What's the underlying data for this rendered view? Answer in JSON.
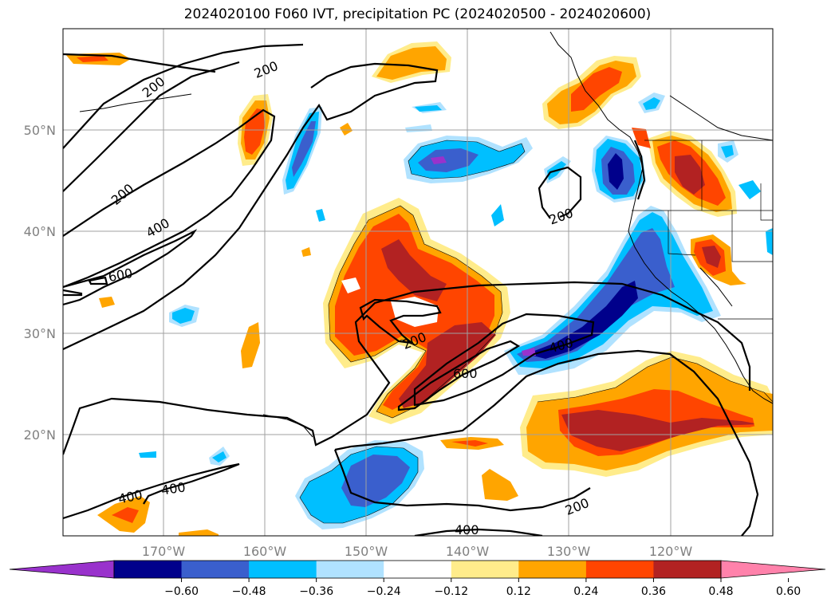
{
  "title": "2024020100 F060 IVT, precipitation PC (2024020500 - 2024020600)",
  "map": {
    "lat_labels": [
      "50°N",
      "40°N",
      "30°N",
      "20°N"
    ],
    "lon_labels": [
      "170°W",
      "160°W",
      "150°W",
      "140°W",
      "130°W",
      "120°W"
    ],
    "contour_labels": [
      "200",
      "200",
      "200",
      "400",
      "600",
      "200",
      "400",
      "200",
      "600",
      "400",
      "400",
      "200",
      "400",
      "400"
    ]
  },
  "colorbar": {
    "colors": [
      "#9932cc",
      "#00008b",
      "#3a5fcd",
      "#00bfff",
      "#b0e2ff",
      "#ffffff",
      "#ffec8b",
      "#ffa500",
      "#ff4500",
      "#b22222",
      "#ff82ab"
    ],
    "tick_labels": [
      "−0.60",
      "−0.48",
      "−0.36",
      "−0.24",
      "−0.12",
      "0.12",
      "0.24",
      "0.36",
      "0.48",
      "0.60"
    ]
  }
}
